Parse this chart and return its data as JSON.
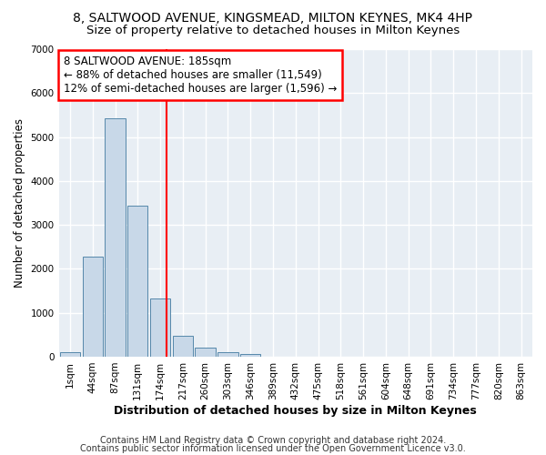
{
  "title1": "8, SALTWOOD AVENUE, KINGSMEAD, MILTON KEYNES, MK4 4HP",
  "title2": "Size of property relative to detached houses in Milton Keynes",
  "xlabel": "Distribution of detached houses by size in Milton Keynes",
  "ylabel": "Number of detached properties",
  "bar_labels": [
    "1sqm",
    "44sqm",
    "87sqm",
    "131sqm",
    "174sqm",
    "217sqm",
    "260sqm",
    "303sqm",
    "346sqm",
    "389sqm",
    "432sqm",
    "475sqm",
    "518sqm",
    "561sqm",
    "604sqm",
    "648sqm",
    "691sqm",
    "734sqm",
    "777sqm",
    "820sqm",
    "863sqm"
  ],
  "bar_values": [
    100,
    2280,
    5420,
    3440,
    1330,
    480,
    200,
    100,
    60,
    0,
    0,
    0,
    0,
    0,
    0,
    0,
    0,
    0,
    0,
    0,
    0
  ],
  "bar_color": "#c8d8e8",
  "bar_edge_color": "#5588aa",
  "ylim": [
    0,
    7000
  ],
  "yticks": [
    0,
    1000,
    2000,
    3000,
    4000,
    5000,
    6000,
    7000
  ],
  "red_line_x": 4.26,
  "annotation_title": "8 SALTWOOD AVENUE: 185sqm",
  "annotation_line1": "← 88% of detached houses are smaller (11,549)",
  "annotation_line2": "12% of semi-detached houses are larger (1,596) →",
  "footer1": "Contains HM Land Registry data © Crown copyright and database right 2024.",
  "footer2": "Contains public sector information licensed under the Open Government Licence v3.0.",
  "bg_color": "#ffffff",
  "plot_bg_color": "#e8eef4",
  "grid_color": "#ffffff",
  "title1_fontsize": 10,
  "title2_fontsize": 9.5,
  "xlabel_fontsize": 9,
  "ylabel_fontsize": 8.5,
  "tick_fontsize": 7.5,
  "footer_fontsize": 7
}
